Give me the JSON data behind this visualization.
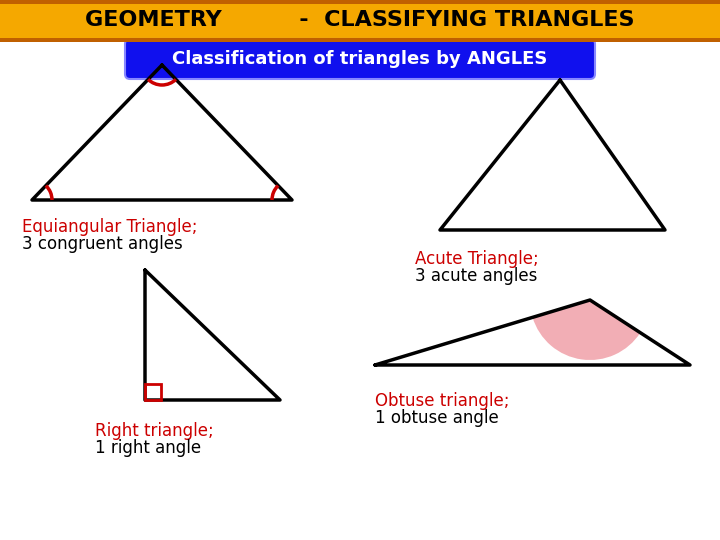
{
  "title_text": "GEOMETRY          -  CLASSIFYING TRIANGLES",
  "header_bg": "#F5A800",
  "header_bar_top": "#C06000",
  "header_bar_bottom": "#C06000",
  "subtitle_text": "Classification of triangles by ANGLES",
  "subtitle_bg": "#1010EE",
  "subtitle_fg": "#FFFFFF",
  "bg_color": "#FFFFFF",
  "tri1_label1": "Equiangular Triangle;",
  "tri1_label2": "3 congruent angles",
  "tri2_label1": "Acute Triangle;",
  "tri2_label2": "3 acute angles",
  "tri3_label1": "Right triangle;",
  "tri3_label2": "1 right angle",
  "tri4_label1": "Obtuse triangle;",
  "tri4_label2": "1 obtuse angle",
  "label_color": "#CC0000",
  "label2_color": "#000000",
  "tri_edge_color": "#000000",
  "angle_arc_color": "#CC0000",
  "angle_fill_color": "#F0A0A8"
}
